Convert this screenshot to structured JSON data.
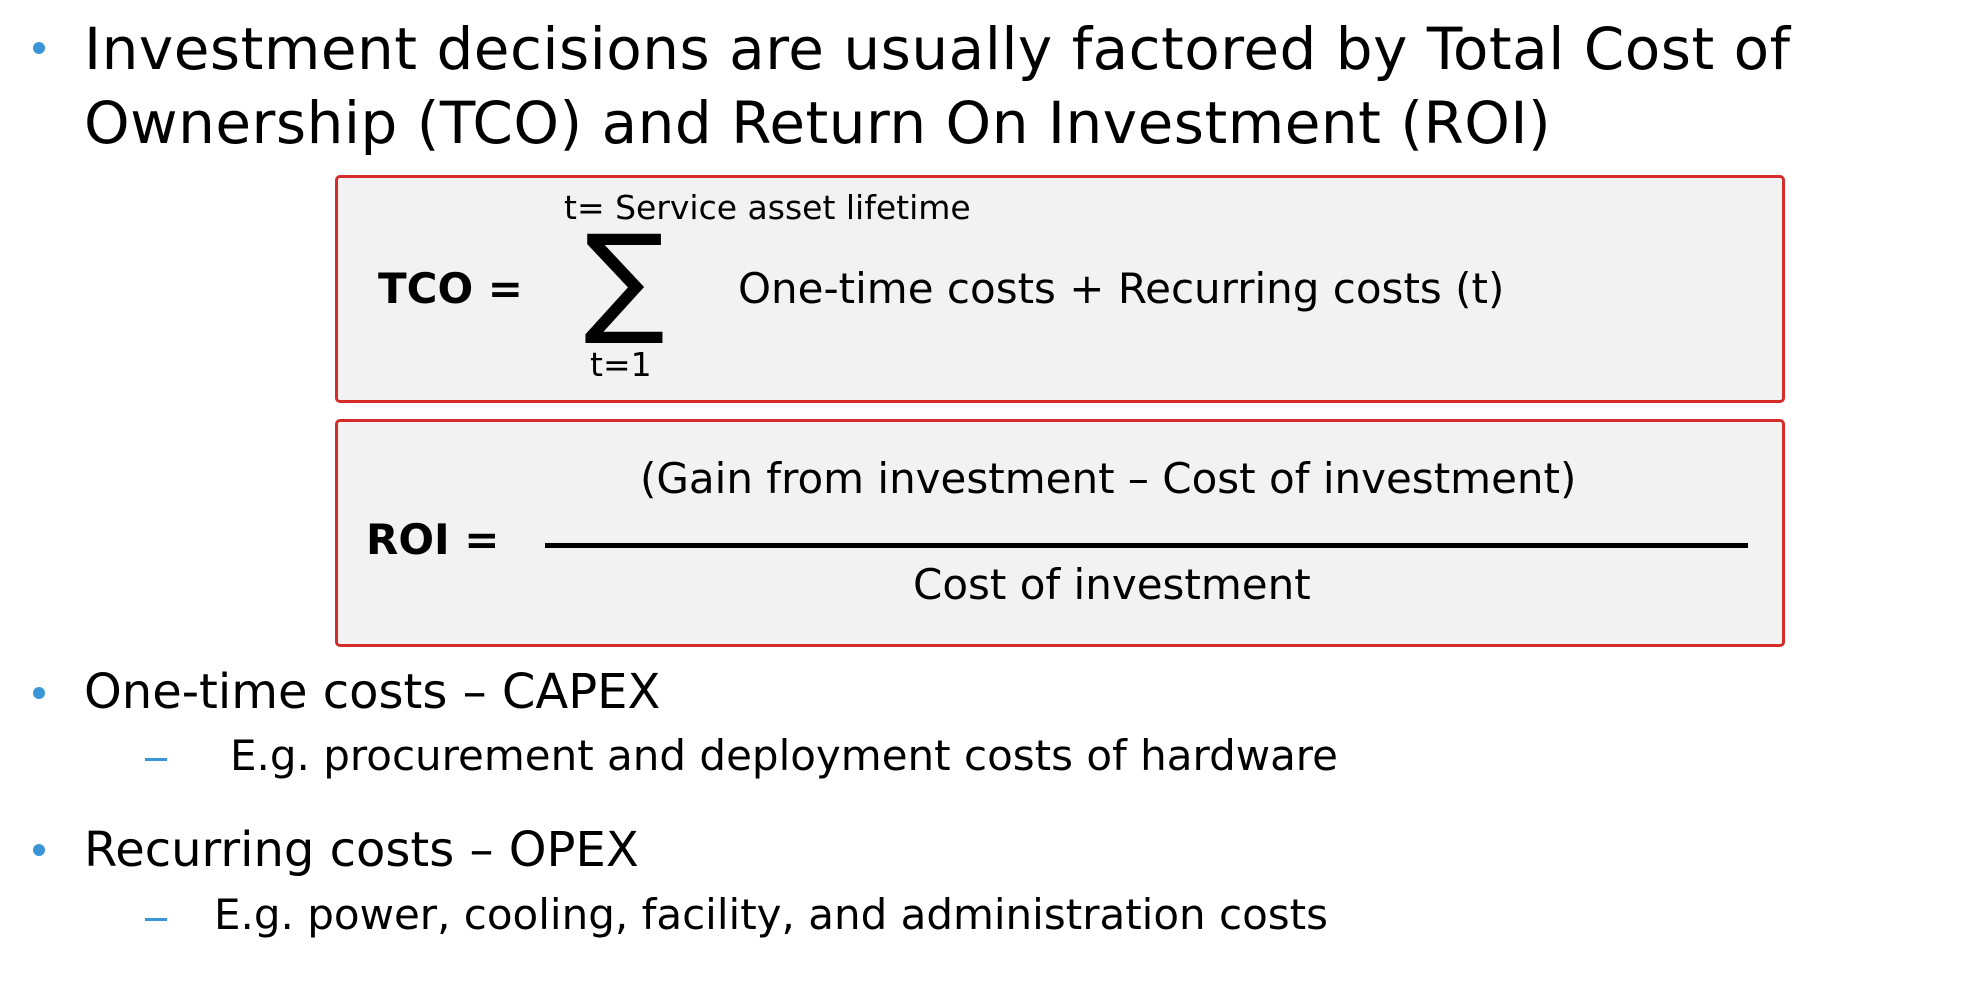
{
  "bullets": {
    "intro": {
      "line1": "Investment decisions are usually factored by Total Cost of",
      "line2": "Ownership (TCO) and Return On Investment (ROI)"
    },
    "capex": {
      "label": "One-time costs – CAPEX",
      "sub": "E.g. procurement and deployment costs of hardware"
    },
    "opex": {
      "label": "Recurring costs – OPEX",
      "sub": "E.g. power, cooling, facility, and administration costs"
    }
  },
  "tco_formula": {
    "lhs": "TCO =",
    "sum_upper": "t= Service asset lifetime",
    "sum_symbol": "∑",
    "sum_lower": "t=1",
    "rhs": "One-time costs + Recurring costs (t)"
  },
  "roi_formula": {
    "lhs": "ROI =",
    "numerator": "(Gain from investment – Cost of investment)",
    "denominator": "Cost of investment"
  },
  "colors": {
    "bullet": "#3a96d6",
    "box_border": "#d42b2b",
    "box_fill": "#f2f2f2"
  }
}
